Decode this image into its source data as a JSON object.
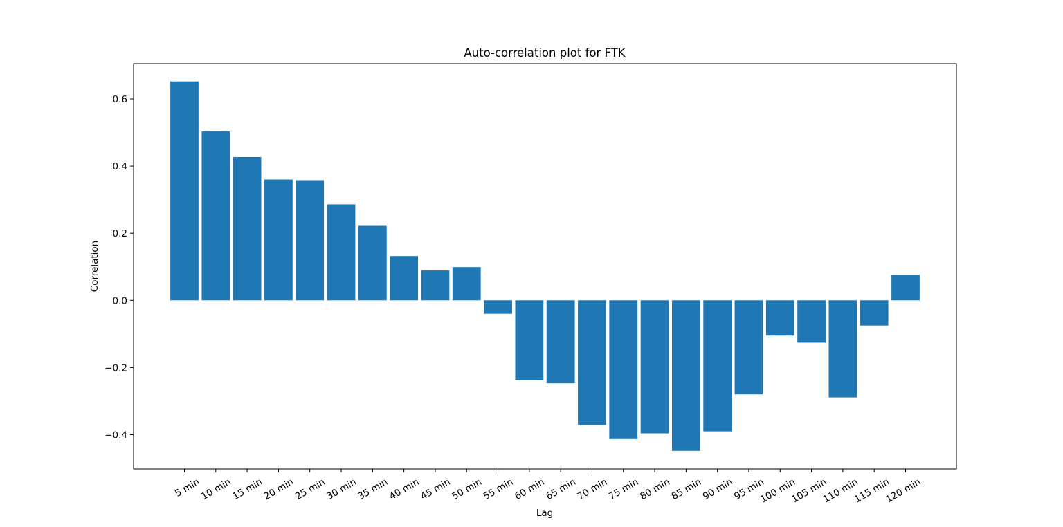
{
  "chart_data": {
    "type": "bar",
    "title": "Auto-correlation plot for FTK",
    "xlabel": "Lag",
    "ylabel": "Correlation",
    "categories": [
      "5 min",
      "10 min",
      "15 min",
      "20 min",
      "25 min",
      "30 min",
      "35 min",
      "40 min",
      "45 min",
      "50 min",
      "55 min",
      "60 min",
      "65 min",
      "70 min",
      "75 min",
      "80 min",
      "85 min",
      "90 min",
      "95 min",
      "100 min",
      "105 min",
      "110 min",
      "115 min",
      "120 min"
    ],
    "values": [
      0.652,
      0.503,
      0.427,
      0.36,
      0.358,
      0.286,
      0.222,
      0.132,
      0.089,
      0.099,
      -0.04,
      -0.237,
      -0.247,
      -0.371,
      -0.413,
      -0.396,
      -0.448,
      -0.39,
      -0.28,
      -0.105,
      -0.126,
      -0.289,
      -0.075,
      0.076
    ],
    "ylim": [
      -0.502,
      0.705
    ],
    "yticks": [
      -0.4,
      -0.2,
      0.0,
      0.2,
      0.4,
      0.6
    ],
    "ytick_labels": [
      "−0.4",
      "−0.2",
      "0.0",
      "0.2",
      "0.4",
      "0.6"
    ],
    "bar_color": "#1f77b4",
    "grid": false,
    "legend": "none"
  }
}
